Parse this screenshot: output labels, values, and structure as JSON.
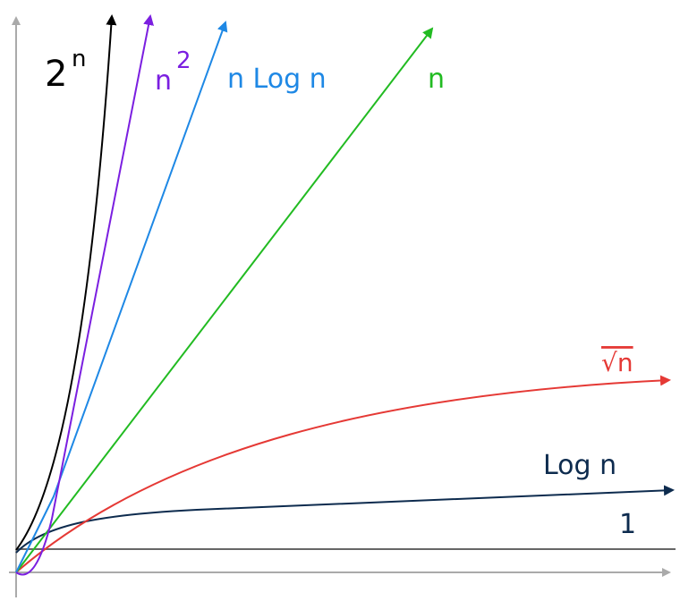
{
  "labels": {
    "exponential": {
      "base": "2",
      "exponent": "n"
    },
    "quadratic": {
      "base": "n",
      "exponent": "2"
    },
    "linearithmic": "n Log n",
    "linear": "n",
    "sqrt": "√n",
    "logarithmic": "Log n",
    "constant": "1"
  }
}
